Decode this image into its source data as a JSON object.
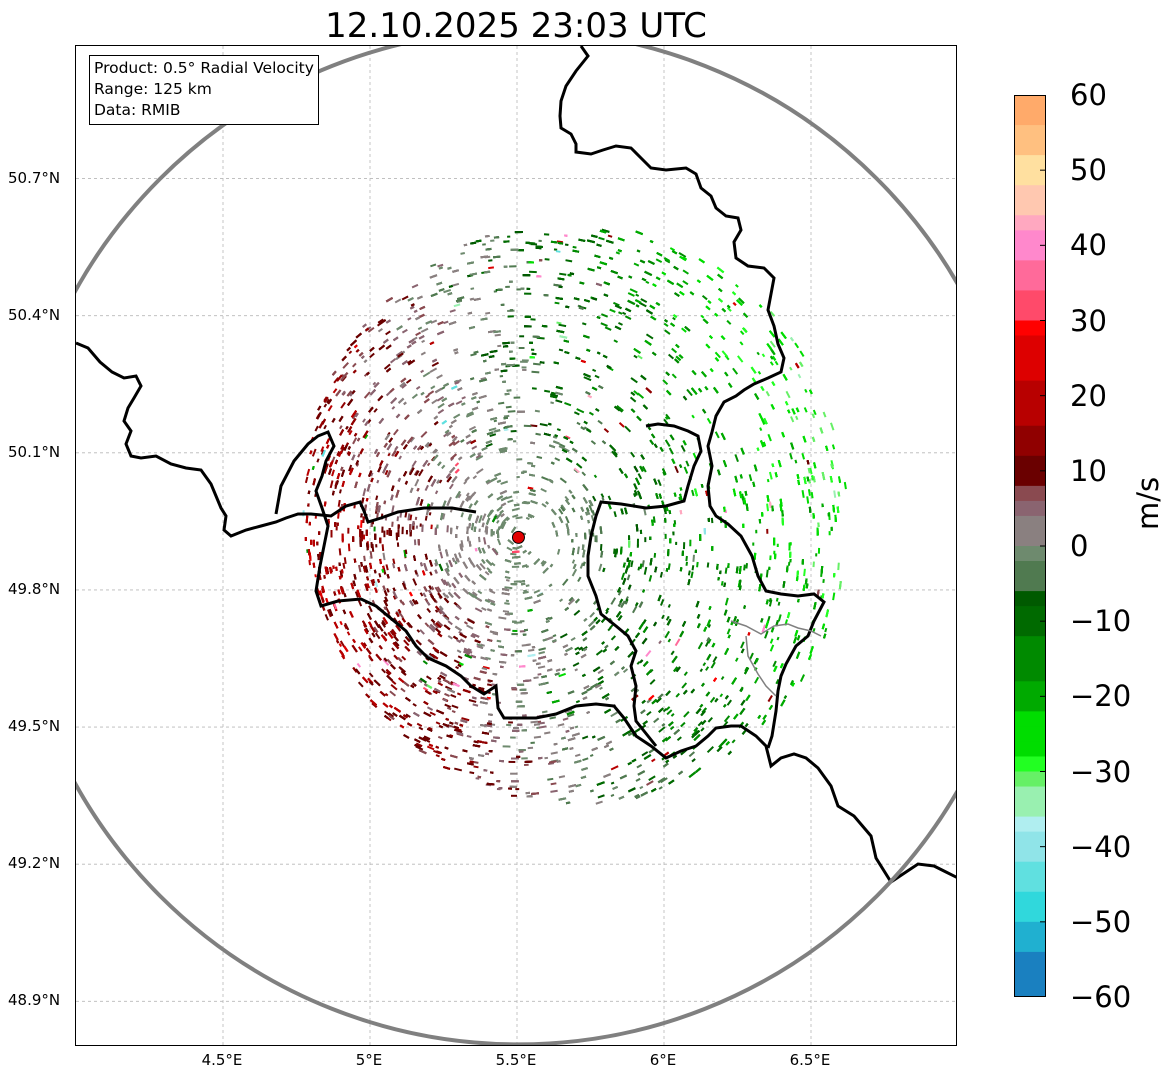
{
  "title": "12.10.2025 23:03 UTC",
  "info_box": {
    "product": "Product: 0.5° Radial Velocity",
    "range": "Range: 125 km",
    "data_source": "Data: RMIB"
  },
  "map": {
    "lat_labels": [
      "50.7°N",
      "50.4°N",
      "50.1°N",
      "49.8°N",
      "49.5°N",
      "49.2°N",
      "48.9°N"
    ],
    "lon_labels": [
      "4.5°E",
      "5°E",
      "5.5°E",
      "6°E",
      "6.5°E"
    ],
    "lat_values": [
      50.7,
      50.4,
      50.1,
      49.8,
      49.5,
      49.2,
      48.9
    ],
    "lon_values": [
      4.5,
      5.0,
      5.5,
      6.0,
      6.5
    ],
    "extent": {
      "lon_min": 4.0,
      "lon_max": 7.0,
      "lat_min": 48.8,
      "lat_max": 50.99
    },
    "radar_site": {
      "lon": 5.505,
      "lat": 49.915,
      "marker_color": "#e00000"
    },
    "range_ring_color": "#808080",
    "border_color": "#000000",
    "gridlines": true
  },
  "colorbar": {
    "unit": "m/s",
    "min": -60,
    "max": 60,
    "tick_labels": [
      "60",
      "50",
      "40",
      "30",
      "20",
      "10",
      "0",
      "−10",
      "−20",
      "−30",
      "−40",
      "−50",
      "−60"
    ],
    "tick_values": [
      60,
      50,
      40,
      30,
      20,
      10,
      0,
      -10,
      -20,
      -30,
      -40,
      -50,
      -60
    ],
    "color_stops": [
      {
        "v": 60,
        "c": "#ff9a5a"
      },
      {
        "v": 56,
        "c": "#ffaa6a"
      },
      {
        "v": 52,
        "c": "#ffc080"
      },
      {
        "v": 48,
        "c": "#ffe0a0"
      },
      {
        "v": 45,
        "c": "#ffc8b0"
      },
      {
        "v": 42,
        "c": "#ffa8c0"
      },
      {
        "v": 38,
        "c": "#ff88cc"
      },
      {
        "v": 34,
        "c": "#ff6a9a"
      },
      {
        "v": 30,
        "c": "#ff4a6a"
      },
      {
        "v": 28,
        "c": "#ff0000"
      },
      {
        "v": 22,
        "c": "#dd0000"
      },
      {
        "v": 17,
        "c": "#b80000"
      },
      {
        "v": 13,
        "c": "#900000"
      },
      {
        "v": 9,
        "c": "#6a0000"
      },
      {
        "v": 7,
        "c": "#8a4a50"
      },
      {
        "v": 4,
        "c": "#8a6470"
      },
      {
        "v": 1,
        "c": "#8a8080"
      },
      {
        "v": -2,
        "c": "#6e8a6e"
      },
      {
        "v": -5,
        "c": "#507a50"
      },
      {
        "v": -7,
        "c": "#005a00"
      },
      {
        "v": -12,
        "c": "#006a00"
      },
      {
        "v": -17,
        "c": "#008a00"
      },
      {
        "v": -22,
        "c": "#00aa00"
      },
      {
        "v": -27,
        "c": "#00dd00"
      },
      {
        "v": -29,
        "c": "#22ff22"
      },
      {
        "v": -32,
        "c": "#66f066"
      },
      {
        "v": -35,
        "c": "#99f0b0"
      },
      {
        "v": -37,
        "c": "#b0eef0"
      },
      {
        "v": -42,
        "c": "#90e4e8"
      },
      {
        "v": -46,
        "c": "#60e0e0"
      },
      {
        "v": -50,
        "c": "#30d8dc"
      },
      {
        "v": -54,
        "c": "#20b0d0"
      },
      {
        "v": -60,
        "c": "#1a80c0"
      }
    ]
  }
}
